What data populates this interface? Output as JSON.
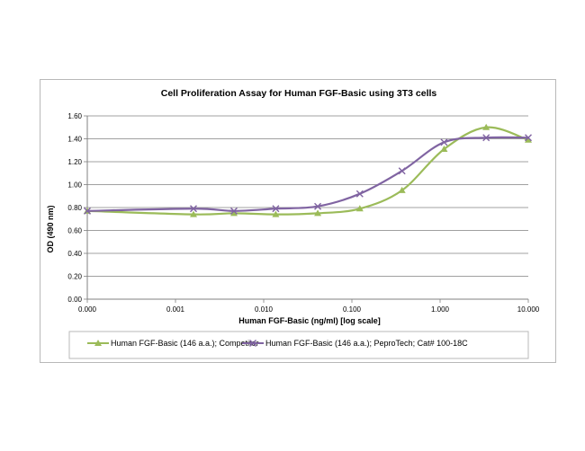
{
  "chart_data": {
    "type": "line",
    "title": "Cell Proliferation Assay for Human FGF-Basic using 3T3 cells",
    "xlabel": "Human FGF-Basic (ng/ml) [log scale]",
    "ylabel": "OD (490 nm)",
    "x_scale": "log",
    "x_tick_labels": [
      "0.000",
      "0.001",
      "0.010",
      "0.100",
      "1.000",
      "10.000"
    ],
    "y_ticks": [
      0.0,
      0.2,
      0.4,
      0.6,
      0.8,
      1.0,
      1.2,
      1.4,
      1.6
    ],
    "y_tick_labels": [
      "0.00",
      "0.20",
      "0.40",
      "0.60",
      "0.80",
      "1.00",
      "1.20",
      "1.40",
      "1.60"
    ],
    "ylim": [
      0.0,
      1.6
    ],
    "grid": "horizontal",
    "legend_position": "bottom",
    "series": [
      {
        "name": "Human FGF-Basic (146 a.a.); Competitor",
        "color": "#9bbb59",
        "marker": "triangle",
        "x": [
          0.0001,
          0.0016,
          0.0046,
          0.0137,
          0.041,
          0.123,
          0.37,
          1.11,
          3.33,
          10.0
        ],
        "y": [
          0.77,
          0.74,
          0.75,
          0.74,
          0.75,
          0.79,
          0.95,
          1.31,
          1.5,
          1.39
        ]
      },
      {
        "name": "Human FGF-Basic (146 a.a.); PeproTech; Cat# 100-18C",
        "color": "#8064a2",
        "marker": "x",
        "x": [
          0.0001,
          0.0016,
          0.0046,
          0.0137,
          0.041,
          0.123,
          0.37,
          1.11,
          3.33,
          10.0
        ],
        "y": [
          0.77,
          0.79,
          0.77,
          0.79,
          0.81,
          0.92,
          1.12,
          1.37,
          1.41,
          1.41
        ]
      }
    ]
  }
}
